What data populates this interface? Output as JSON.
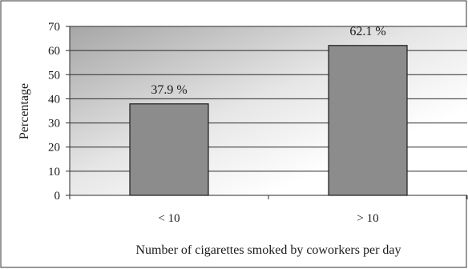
{
  "chart_data": {
    "type": "bar",
    "categories": [
      "< 10",
      "> 10"
    ],
    "values": [
      37.9,
      62.1
    ],
    "data_labels": [
      "37.9 %",
      "62.1 %"
    ],
    "title": "",
    "xlabel": "Number of cigarettes smoked by coworkers per day",
    "ylabel": "Percentage",
    "ylim": [
      0,
      70
    ],
    "yticks": [
      0,
      10,
      20,
      30,
      40,
      50,
      60,
      70
    ],
    "grid": true,
    "legend": "none"
  },
  "colors": {
    "bar_fill": "#8c8c8c",
    "bar_stroke": "#1a1a1a",
    "plot_gradient_dark": "#a6a6a6",
    "plot_gradient_light": "#ffffff",
    "frame": "#333333"
  }
}
